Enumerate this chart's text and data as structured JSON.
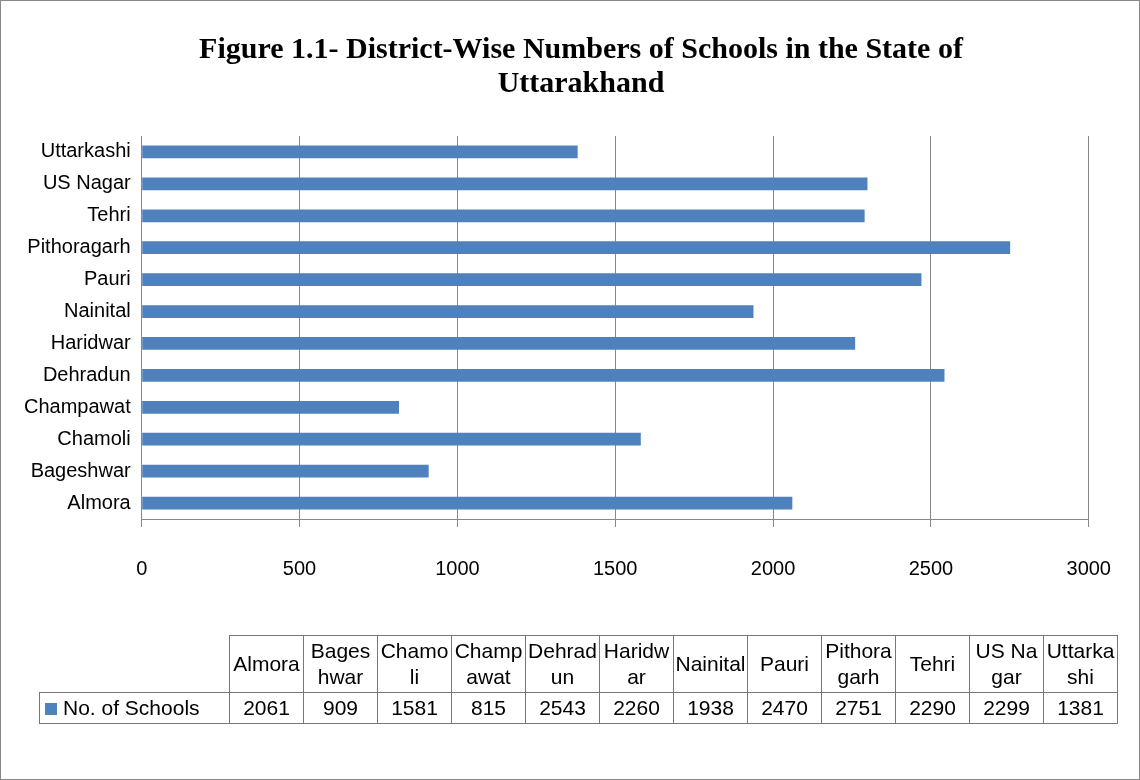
{
  "chart_data": [
    {
      "type": "bar",
      "orientation": "horizontal",
      "title": "Figure 1.1- District-Wise Numbers of Schools in the State of Uttarakhand",
      "categories": [
        "Uttarkashi",
        "US Nagar",
        "Tehri",
        "Pithoragarh",
        "Pauri",
        "Nainital",
        "Haridwar",
        "Dehradun",
        "Champawat",
        "Chamoli",
        "Bageshwar",
        "Almora"
      ],
      "series": [
        {
          "color": "#4f81bd",
          "values": [
            1381,
            2299,
            2290,
            2751,
            2470,
            1938,
            2260,
            2543,
            815,
            1581,
            909,
            2061
          ]
        }
      ],
      "xlim": [
        0,
        3000
      ],
      "xticks": [
        0,
        500,
        1000,
        1500,
        2000,
        2500,
        3000
      ],
      "grid": "x"
    },
    {
      "type": "other",
      "categories": [
        "Almora",
        "Bageshwar",
        "Chamoli",
        "Champawat",
        "Dehradun",
        "Haridwar",
        "Nainital",
        "Pauri",
        "Pithoragarh",
        "Tehri",
        "US Nagar",
        "Uttarkashi"
      ],
      "series": [
        {
          "name": "No. of Schools",
          "color": "#4f81bd",
          "values": [
            2061,
            909,
            1581,
            815,
            2543,
            2260,
            1938,
            2470,
            2751,
            2290,
            2299,
            1381
          ]
        }
      ],
      "legend": "left",
      "data_labels": true
    }
  ]
}
